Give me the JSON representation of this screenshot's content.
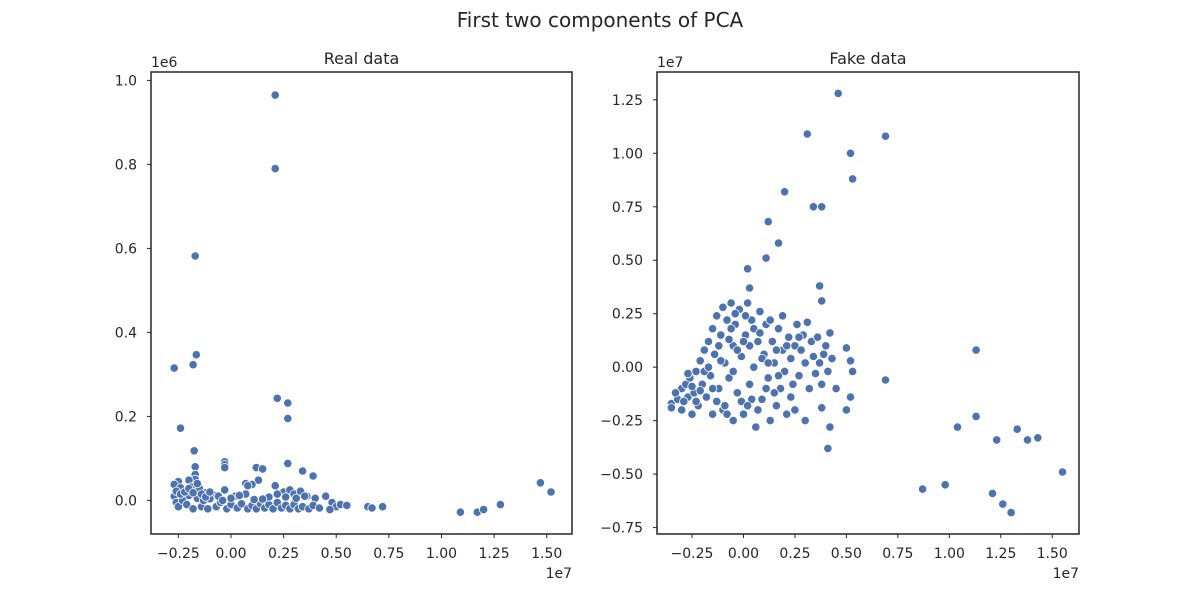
{
  "suptitle": "First two components of PCA",
  "chart_data": [
    {
      "type": "scatter",
      "title": "Real data",
      "x_offset_label": "1e7",
      "y_offset_label": "1e6",
      "xlim": [
        -0.38,
        1.62
      ],
      "ylim": [
        -0.08,
        1.02
      ],
      "xticks": [
        -0.25,
        0.0,
        0.25,
        0.5,
        0.75,
        1.0,
        1.25,
        1.5
      ],
      "xtick_labels": [
        "−0.25",
        "0.00",
        "0.25",
        "0.50",
        "0.75",
        "1.00",
        "1.25",
        "1.50"
      ],
      "yticks": [
        0.0,
        0.2,
        0.4,
        0.6,
        0.8,
        1.0
      ],
      "ytick_labels": [
        "0.0",
        "0.2",
        "0.4",
        "0.6",
        "0.8",
        "1.0"
      ],
      "color": "#4c72b0",
      "points": [
        [
          0.21,
          0.965
        ],
        [
          0.21,
          0.79
        ],
        [
          -0.17,
          0.582
        ],
        [
          -0.165,
          0.347
        ],
        [
          -0.18,
          0.323
        ],
        [
          -0.27,
          0.315
        ],
        [
          0.22,
          0.243
        ],
        [
          0.27,
          0.232
        ],
        [
          0.27,
          0.195
        ],
        [
          -0.24,
          0.172
        ],
        [
          -0.175,
          0.118
        ],
        [
          -0.03,
          0.092
        ],
        [
          -0.03,
          0.085
        ],
        [
          -0.03,
          0.078
        ],
        [
          0.12,
          0.078
        ],
        [
          0.27,
          0.088
        ],
        [
          0.34,
          0.07
        ],
        [
          0.39,
          0.058
        ],
        [
          0.15,
          0.075
        ],
        [
          0.07,
          0.04
        ],
        [
          0.13,
          0.048
        ],
        [
          0.1,
          0.038
        ],
        [
          -0.17,
          0.08
        ],
        [
          -0.17,
          0.062
        ],
        [
          -0.17,
          0.05
        ],
        [
          -0.2,
          0.048
        ],
        [
          -0.25,
          0.045
        ],
        [
          -0.27,
          0.038
        ],
        [
          -0.24,
          0.03
        ],
        [
          -0.19,
          0.032
        ],
        [
          -0.15,
          0.028
        ],
        [
          -0.12,
          0.018
        ],
        [
          -0.08,
          0.012
        ],
        [
          -0.03,
          0.025
        ],
        [
          0.02,
          0.01
        ],
        [
          0.07,
          0.015
        ],
        [
          0.08,
          0.035
        ],
        [
          0.21,
          0.035
        ],
        [
          0.25,
          0.02
        ],
        [
          0.28,
          0.025
        ],
        [
          0.3,
          0.015
        ],
        [
          0.33,
          0.022
        ],
        [
          0.36,
          0.01
        ],
        [
          0.4,
          0.005
        ],
        [
          0.45,
          0.01
        ],
        [
          0.48,
          -0.005
        ],
        [
          0.5,
          -0.015
        ],
        [
          0.52,
          -0.01
        ],
        [
          0.55,
          -0.012
        ],
        [
          0.47,
          -0.022
        ],
        [
          -0.27,
          0.01
        ],
        [
          -0.26,
          -0.005
        ],
        [
          -0.25,
          -0.015
        ],
        [
          -0.23,
          0.0
        ],
        [
          -0.21,
          -0.01
        ],
        [
          -0.2,
          0.012
        ],
        [
          -0.18,
          -0.02
        ],
        [
          -0.16,
          0.005
        ],
        [
          -0.14,
          -0.015
        ],
        [
          -0.13,
          0.0
        ],
        [
          -0.11,
          -0.02
        ],
        [
          -0.1,
          0.004
        ],
        [
          -0.07,
          -0.015
        ],
        [
          -0.05,
          -0.005
        ],
        [
          -0.02,
          -0.02
        ],
        [
          0.0,
          -0.01
        ],
        [
          0.03,
          -0.018
        ],
        [
          0.05,
          -0.008
        ],
        [
          0.08,
          -0.02
        ],
        [
          0.1,
          -0.012
        ],
        [
          0.12,
          -0.02
        ],
        [
          0.14,
          -0.008
        ],
        [
          0.16,
          -0.018
        ],
        [
          0.18,
          -0.01
        ],
        [
          0.2,
          -0.02
        ],
        [
          0.22,
          -0.005
        ],
        [
          0.24,
          -0.018
        ],
        [
          0.26,
          -0.012
        ],
        [
          0.28,
          -0.02
        ],
        [
          0.3,
          -0.01
        ],
        [
          0.32,
          -0.02
        ],
        [
          0.34,
          -0.015
        ],
        [
          0.37,
          -0.02
        ],
        [
          0.39,
          -0.012
        ],
        [
          0.42,
          -0.018
        ],
        [
          -0.26,
          0.022
        ],
        [
          -0.24,
          0.015
        ],
        [
          -0.22,
          0.02
        ],
        [
          -0.2,
          0.028
        ],
        [
          -0.18,
          0.018
        ],
        [
          -0.16,
          0.04
        ],
        [
          -0.14,
          0.015
        ],
        [
          -0.12,
          0.008
        ],
        [
          -0.1,
          0.02
        ],
        [
          -0.06,
          0.01
        ],
        [
          0.0,
          0.005
        ],
        [
          0.04,
          0.012
        ],
        [
          0.18,
          0.008
        ],
        [
          0.22,
          0.015
        ],
        [
          0.26,
          0.008
        ],
        [
          0.31,
          0.005
        ],
        [
          0.35,
          0.01
        ],
        [
          0.15,
          0.003
        ],
        [
          0.11,
          0.002
        ],
        [
          -0.04,
          0.0
        ],
        [
          0.65,
          -0.015
        ],
        [
          0.67,
          -0.018
        ],
        [
          0.72,
          -0.015
        ],
        [
          1.09,
          -0.028
        ],
        [
          1.17,
          -0.028
        ],
        [
          1.2,
          -0.022
        ],
        [
          1.28,
          -0.01
        ],
        [
          1.47,
          0.042
        ],
        [
          1.52,
          0.02
        ]
      ]
    },
    {
      "type": "scatter",
      "title": "Fake data",
      "x_offset_label": "1e7",
      "y_offset_label": "1e7",
      "xlim": [
        -0.42,
        1.63
      ],
      "ylim": [
        -0.78,
        1.38
      ],
      "xticks": [
        -0.25,
        0.0,
        0.25,
        0.5,
        0.75,
        1.0,
        1.25,
        1.5
      ],
      "xtick_labels": [
        "−0.25",
        "0.00",
        "0.25",
        "0.50",
        "0.75",
        "1.00",
        "1.25",
        "1.50"
      ],
      "yticks": [
        -0.75,
        -0.5,
        -0.25,
        0.0,
        0.25,
        0.5,
        0.75,
        1.0,
        1.25
      ],
      "ytick_labels": [
        "−0.75",
        "−0.50",
        "−0.25",
        "0.00",
        "0.25",
        "0.50",
        "0.75",
        "1.00",
        "1.25"
      ],
      "color": "#4c72b0",
      "points": [
        [
          0.46,
          1.28
        ],
        [
          0.31,
          1.09
        ],
        [
          0.69,
          1.08
        ],
        [
          0.52,
          1.0
        ],
        [
          0.53,
          0.88
        ],
        [
          0.2,
          0.82
        ],
        [
          0.12,
          0.68
        ],
        [
          0.34,
          0.75
        ],
        [
          0.38,
          0.75
        ],
        [
          0.11,
          0.51
        ],
        [
          0.17,
          0.58
        ],
        [
          0.02,
          0.46
        ],
        [
          0.03,
          0.37
        ],
        [
          0.37,
          0.38
        ],
        [
          0.38,
          0.31
        ],
        [
          0.42,
          0.16
        ],
        [
          0.5,
          0.09
        ],
        [
          0.52,
          0.03
        ],
        [
          0.53,
          -0.02
        ],
        [
          0.69,
          -0.06
        ],
        [
          0.52,
          -0.14
        ],
        [
          0.5,
          -0.2
        ],
        [
          0.42,
          -0.28
        ],
        [
          0.41,
          -0.38
        ],
        [
          0.38,
          -0.19
        ],
        [
          0.3,
          -0.25
        ],
        [
          1.13,
          0.08
        ],
        [
          1.13,
          -0.23
        ],
        [
          1.04,
          -0.28
        ],
        [
          1.23,
          -0.34
        ],
        [
          1.33,
          -0.29
        ],
        [
          1.38,
          -0.34
        ],
        [
          1.43,
          -0.33
        ],
        [
          1.55,
          -0.49
        ],
        [
          1.21,
          -0.59
        ],
        [
          1.26,
          -0.64
        ],
        [
          1.3,
          -0.68
        ],
        [
          0.98,
          -0.55
        ],
        [
          0.87,
          -0.57
        ],
        [
          -0.35,
          -0.17
        ],
        [
          -0.35,
          -0.19
        ],
        [
          -0.32,
          -0.15
        ],
        [
          -0.3,
          -0.1
        ],
        [
          -0.3,
          -0.2
        ],
        [
          -0.28,
          -0.08
        ],
        [
          -0.27,
          -0.14
        ],
        [
          -0.26,
          -0.05
        ],
        [
          -0.25,
          -0.22
        ],
        [
          -0.24,
          -0.12
        ],
        [
          -0.23,
          -0.02
        ],
        [
          -0.22,
          -0.18
        ],
        [
          -0.21,
          0.03
        ],
        [
          -0.2,
          -0.08
        ],
        [
          -0.19,
          0.08
        ],
        [
          -0.18,
          -0.14
        ],
        [
          -0.17,
          0.12
        ],
        [
          -0.16,
          -0.04
        ],
        [
          -0.15,
          0.18
        ],
        [
          -0.15,
          -0.22
        ],
        [
          -0.14,
          0.06
        ],
        [
          -0.13,
          0.24
        ],
        [
          -0.12,
          -0.1
        ],
        [
          -0.11,
          0.15
        ],
        [
          -0.1,
          0.28
        ],
        [
          -0.1,
          -0.2
        ],
        [
          -0.09,
          0.02
        ],
        [
          -0.08,
          0.22
        ],
        [
          -0.07,
          -0.05
        ],
        [
          -0.06,
          0.3
        ],
        [
          -0.05,
          0.1
        ],
        [
          -0.05,
          -0.25
        ],
        [
          -0.04,
          0.2
        ],
        [
          -0.03,
          -0.12
        ],
        [
          -0.02,
          0.27
        ],
        [
          -0.01,
          0.05
        ],
        [
          0.0,
          -0.22
        ],
        [
          0.01,
          0.15
        ],
        [
          0.02,
          0.3
        ],
        [
          0.03,
          -0.08
        ],
        [
          0.04,
          0.22
        ],
        [
          0.05,
          0.0
        ],
        [
          0.06,
          -0.28
        ],
        [
          0.07,
          0.12
        ],
        [
          0.08,
          0.26
        ],
        [
          0.09,
          -0.15
        ],
        [
          0.1,
          0.06
        ],
        [
          0.11,
          0.2
        ],
        [
          0.12,
          -0.05
        ],
        [
          0.13,
          -0.25
        ],
        [
          0.14,
          0.12
        ],
        [
          0.15,
          0.02
        ],
        [
          0.16,
          -0.18
        ],
        [
          0.17,
          0.18
        ],
        [
          0.18,
          -0.1
        ],
        [
          0.19,
          0.08
        ],
        [
          0.2,
          -0.02
        ],
        [
          0.21,
          -0.22
        ],
        [
          0.22,
          0.14
        ],
        [
          0.23,
          0.04
        ],
        [
          0.24,
          -0.08
        ],
        [
          0.25,
          0.1
        ],
        [
          0.26,
          0.2
        ],
        [
          0.27,
          -0.04
        ],
        [
          0.28,
          0.08
        ],
        [
          0.29,
          0.15
        ],
        [
          0.3,
          0.02
        ],
        [
          0.31,
          0.21
        ],
        [
          0.32,
          -0.1
        ],
        [
          0.33,
          0.12
        ],
        [
          0.34,
          0.05
        ],
        [
          0.35,
          -0.03
        ],
        [
          0.36,
          0.14
        ],
        [
          0.37,
          0.02
        ],
        [
          0.38,
          -0.08
        ],
        [
          0.39,
          0.06
        ],
        [
          0.4,
          0.1
        ],
        [
          0.41,
          -0.02
        ],
        [
          0.43,
          0.04
        ],
        [
          0.45,
          -0.1
        ],
        [
          -0.33,
          -0.12
        ],
        [
          -0.29,
          -0.16
        ],
        [
          -0.27,
          -0.03
        ],
        [
          -0.25,
          -0.09
        ],
        [
          -0.23,
          -0.16
        ],
        [
          -0.21,
          -0.11
        ],
        [
          -0.19,
          -0.02
        ],
        [
          -0.17,
          0.0
        ],
        [
          -0.15,
          -0.1
        ],
        [
          -0.13,
          -0.16
        ],
        [
          -0.11,
          0.03
        ],
        [
          -0.09,
          -0.18
        ],
        [
          -0.07,
          0.13
        ],
        [
          -0.05,
          -0.02
        ],
        [
          -0.03,
          0.08
        ],
        [
          -0.01,
          -0.16
        ],
        [
          0.01,
          0.24
        ],
        [
          0.03,
          0.1
        ],
        [
          0.05,
          0.18
        ],
        [
          0.07,
          -0.2
        ],
        [
          0.09,
          0.04
        ],
        [
          0.11,
          -0.1
        ],
        [
          0.13,
          0.22
        ],
        [
          0.15,
          -0.12
        ],
        [
          0.17,
          -0.04
        ],
        [
          0.19,
          0.24
        ],
        [
          0.21,
          0.1
        ],
        [
          0.23,
          -0.14
        ],
        [
          0.25,
          -0.2
        ],
        [
          0.27,
          0.14
        ],
        [
          -0.12,
          0.1
        ],
        [
          -0.08,
          -0.22
        ],
        [
          -0.04,
          0.25
        ],
        [
          0.0,
          0.12
        ],
        [
          0.04,
          -0.15
        ],
        [
          0.08,
          0.16
        ],
        [
          0.12,
          0.02
        ],
        [
          0.16,
          0.08
        ],
        [
          0.02,
          -0.18
        ],
        [
          -0.06,
          0.18
        ]
      ]
    }
  ]
}
